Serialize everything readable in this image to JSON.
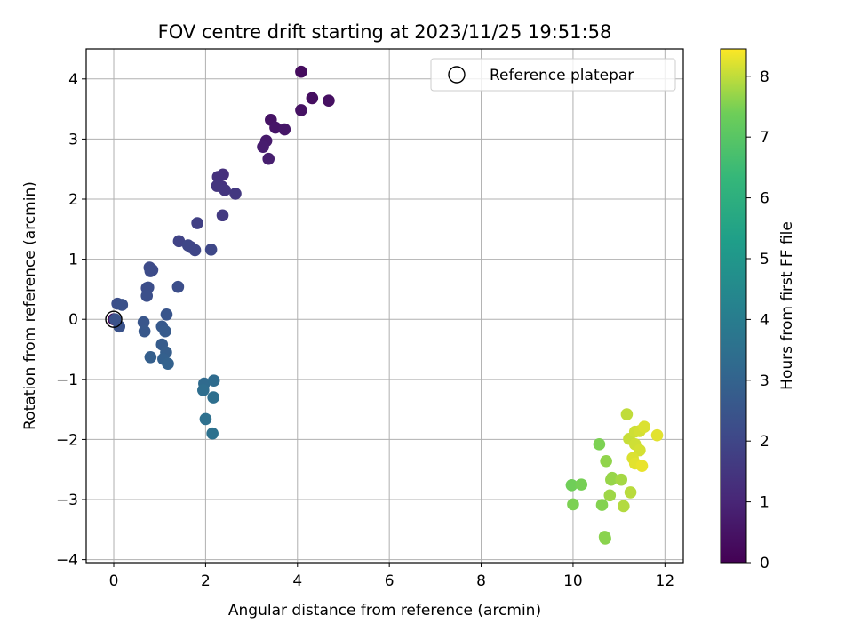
{
  "chart_data": {
    "type": "scatter",
    "title": "FOV centre drift starting at 2023/11/25 19:51:58",
    "xlabel": "Angular distance from reference (arcmin)",
    "ylabel": "Rotation from reference (arcmin)",
    "xlim": [
      -0.6,
      12.4
    ],
    "ylim": [
      -4.05,
      4.5
    ],
    "xticks": [
      0,
      2,
      4,
      6,
      8,
      10,
      12
    ],
    "yticks": [
      -4,
      -3,
      -2,
      -1,
      0,
      1,
      2,
      3,
      4
    ],
    "grid": true,
    "legend": {
      "position": "top-right",
      "entries": [
        "Reference platepar"
      ]
    },
    "reference_point": {
      "x": 0,
      "y": 0
    },
    "colorbar": {
      "label": "Hours from first FF file",
      "range": [
        0,
        8.45
      ],
      "ticks": [
        0,
        1,
        2,
        3,
        4,
        5,
        6,
        7,
        8
      ],
      "colormap": "viridis"
    },
    "series": [
      {
        "x": [
          0.0,
          4.08,
          4.32,
          4.68,
          4.08,
          3.42,
          3.52,
          3.72,
          3.32,
          3.25,
          3.37,
          2.38,
          2.27,
          2.35,
          2.25,
          2.42,
          2.65,
          2.37,
          1.82,
          1.42,
          1.68,
          1.62,
          1.77,
          2.12,
          0.78,
          0.84,
          0.8,
          0.72,
          0.75,
          1.4,
          0.72,
          0.08,
          0.18,
          0.12,
          0.03,
          1.15,
          0.65,
          0.67,
          1.05,
          1.12,
          1.05,
          1.14,
          0.8,
          1.08,
          1.18,
          1.97,
          2.18,
          1.95,
          2.17,
          2.0,
          2.15,
          9.97,
          10.18,
          10.57,
          10.0,
          10.63,
          10.69,
          10.7,
          10.72,
          10.83,
          10.85,
          10.8,
          11.05,
          11.17,
          11.22,
          11.35,
          11.45,
          11.55,
          11.83,
          11.35,
          11.45,
          11.3,
          11.35,
          11.5,
          11.1,
          11.25
        ],
        "y": [
          0.0,
          4.12,
          3.68,
          3.64,
          3.48,
          3.32,
          3.19,
          3.16,
          2.97,
          2.87,
          2.67,
          2.41,
          2.37,
          2.21,
          2.22,
          2.15,
          2.09,
          1.73,
          1.6,
          1.3,
          1.2,
          1.23,
          1.15,
          1.16,
          0.86,
          0.82,
          0.8,
          0.52,
          0.53,
          0.54,
          0.39,
          0.26,
          0.24,
          -0.12,
          0.0,
          0.08,
          -0.05,
          -0.2,
          -0.12,
          -0.2,
          -0.42,
          -0.55,
          -0.63,
          -0.66,
          -0.74,
          -1.07,
          -1.02,
          -1.18,
          -1.3,
          -1.66,
          -1.9,
          -2.76,
          -2.75,
          -2.08,
          -3.08,
          -3.09,
          -3.62,
          -3.65,
          -2.36,
          -2.67,
          -2.64,
          -2.93,
          -2.67,
          -1.58,
          -1.99,
          -1.87,
          -1.86,
          -1.79,
          -1.93,
          -2.08,
          -2.18,
          -2.31,
          -2.4,
          -2.44,
          -3.11,
          -2.88
        ],
        "hours": [
          0.1,
          0.3,
          0.35,
          0.4,
          0.45,
          0.5,
          0.55,
          0.6,
          0.7,
          0.75,
          0.8,
          1.3,
          1.35,
          1.4,
          1.45,
          1.5,
          1.55,
          1.6,
          1.8,
          1.9,
          1.95,
          2.0,
          2.0,
          2.05,
          2.15,
          2.15,
          2.2,
          2.2,
          2.25,
          2.25,
          2.3,
          2.3,
          2.35,
          2.4,
          2.4,
          2.5,
          2.55,
          2.6,
          2.65,
          2.7,
          2.75,
          2.8,
          2.85,
          2.9,
          2.95,
          3.3,
          3.35,
          3.4,
          3.45,
          3.5,
          3.55,
          7.4,
          7.45,
          7.5,
          7.5,
          7.55,
          7.6,
          7.6,
          7.65,
          7.7,
          7.7,
          7.75,
          7.8,
          8.0,
          8.05,
          8.1,
          8.15,
          8.2,
          8.25,
          8.1,
          8.15,
          8.2,
          8.25,
          8.3,
          7.9,
          7.95
        ]
      }
    ]
  }
}
